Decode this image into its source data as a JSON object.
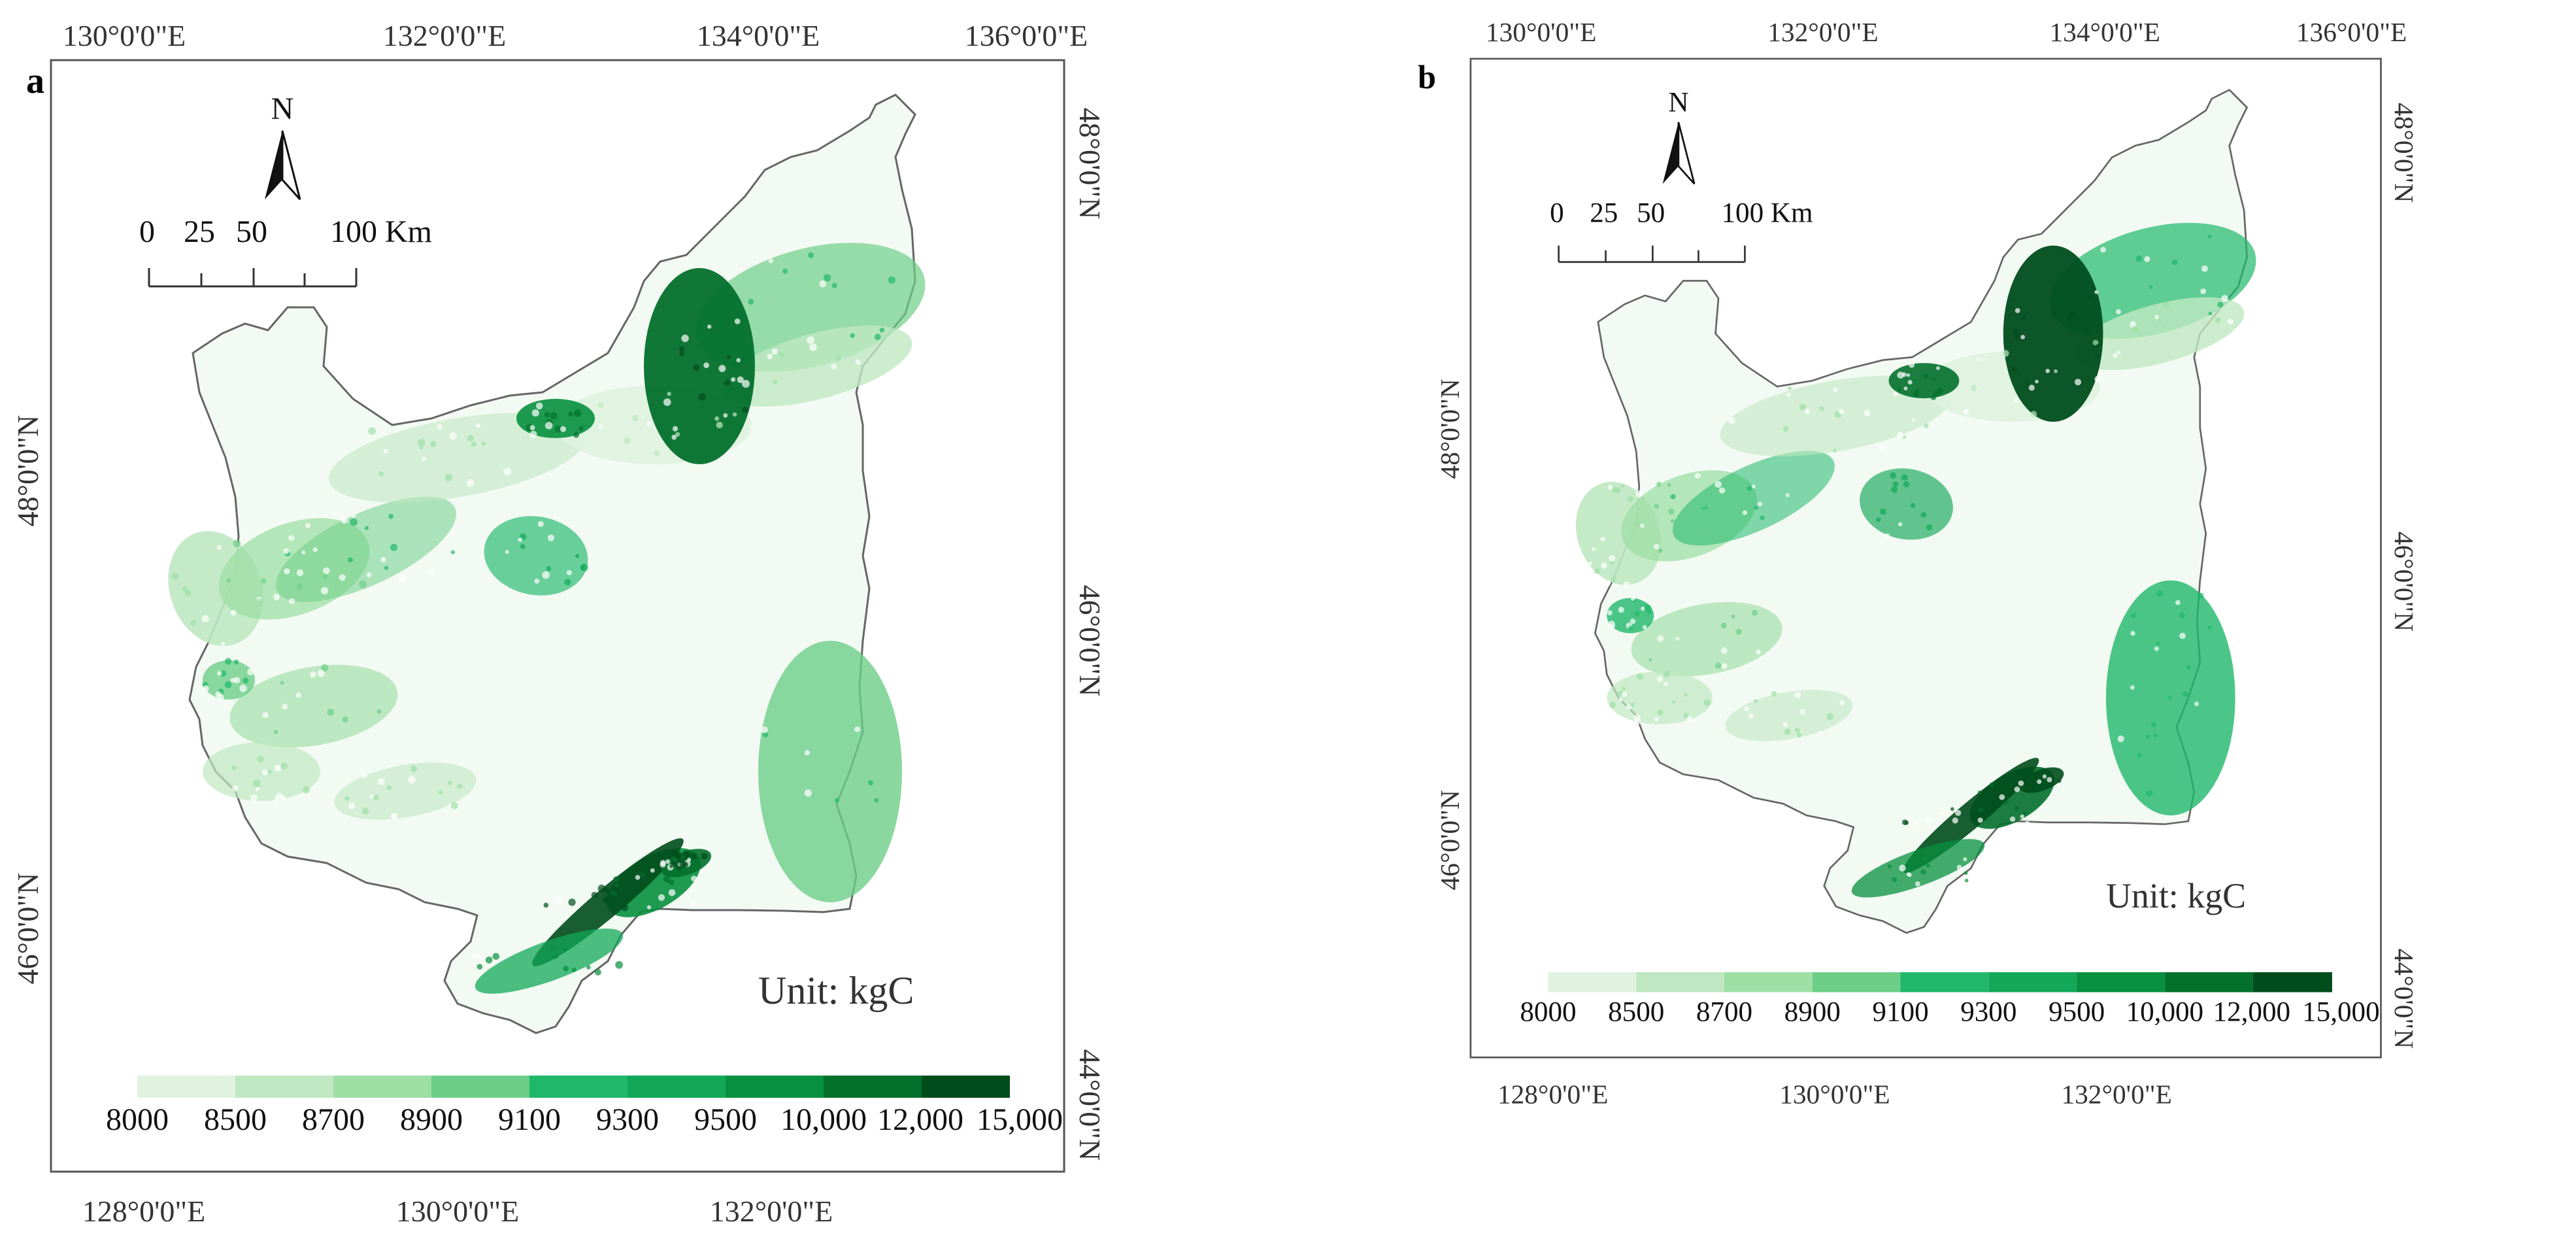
{
  "palette": [
    "#dff3e0",
    "#bfe8c2",
    "#9edfa6",
    "#6dce88",
    "#1fb86a",
    "#12a858",
    "#07903f",
    "#03702c",
    "#004d1c"
  ],
  "panels": [
    {
      "letter": "a",
      "top_labels": [
        "130°0'0\"E",
        "132°0'0\"E",
        "134°0'0\"E",
        "136°0'0\"E"
      ],
      "bottom_labels": [
        "128°0'0\"E",
        "130°0'0\"E",
        "132°0'0\"E"
      ],
      "left_labels": [
        "48°0'0\"N",
        "46°0'0\"N"
      ],
      "right_labels": [
        "48°0'0\"N",
        "46°0'0\"N",
        "44°0'0\"N"
      ],
      "north": "N",
      "scale_labels": [
        "0",
        "25",
        "50",
        "100 Km"
      ],
      "unit": "Unit: kgC",
      "legend": [
        "8000",
        "8500",
        "8700",
        "8900",
        "9100",
        "9300",
        "9500",
        "10,000",
        "12,000",
        "15,000"
      ]
    },
    {
      "letter": "b",
      "top_labels": [
        "130°0'0\"E",
        "132°0'0\"E",
        "134°0'0\"E",
        "136°0'0\"E"
      ],
      "bottom_labels": [
        "128°0'0\"E",
        "130°0'0\"E",
        "132°0'0\"E"
      ],
      "left_labels": [
        "48°0'0\"N",
        "46°0'0\"N"
      ],
      "right_labels": [
        "48°0'0\"N",
        "46°0'0\"N",
        "44°0'0\"N"
      ],
      "north": "N",
      "scale_labels": [
        "0",
        "25",
        "50",
        "100 Km"
      ],
      "unit": "Unit: kgC",
      "legend": [
        "8000",
        "8500",
        "8700",
        "8900",
        "9100",
        "9300",
        "9500",
        "10,000",
        "12,000",
        "15,000"
      ]
    }
  ]
}
